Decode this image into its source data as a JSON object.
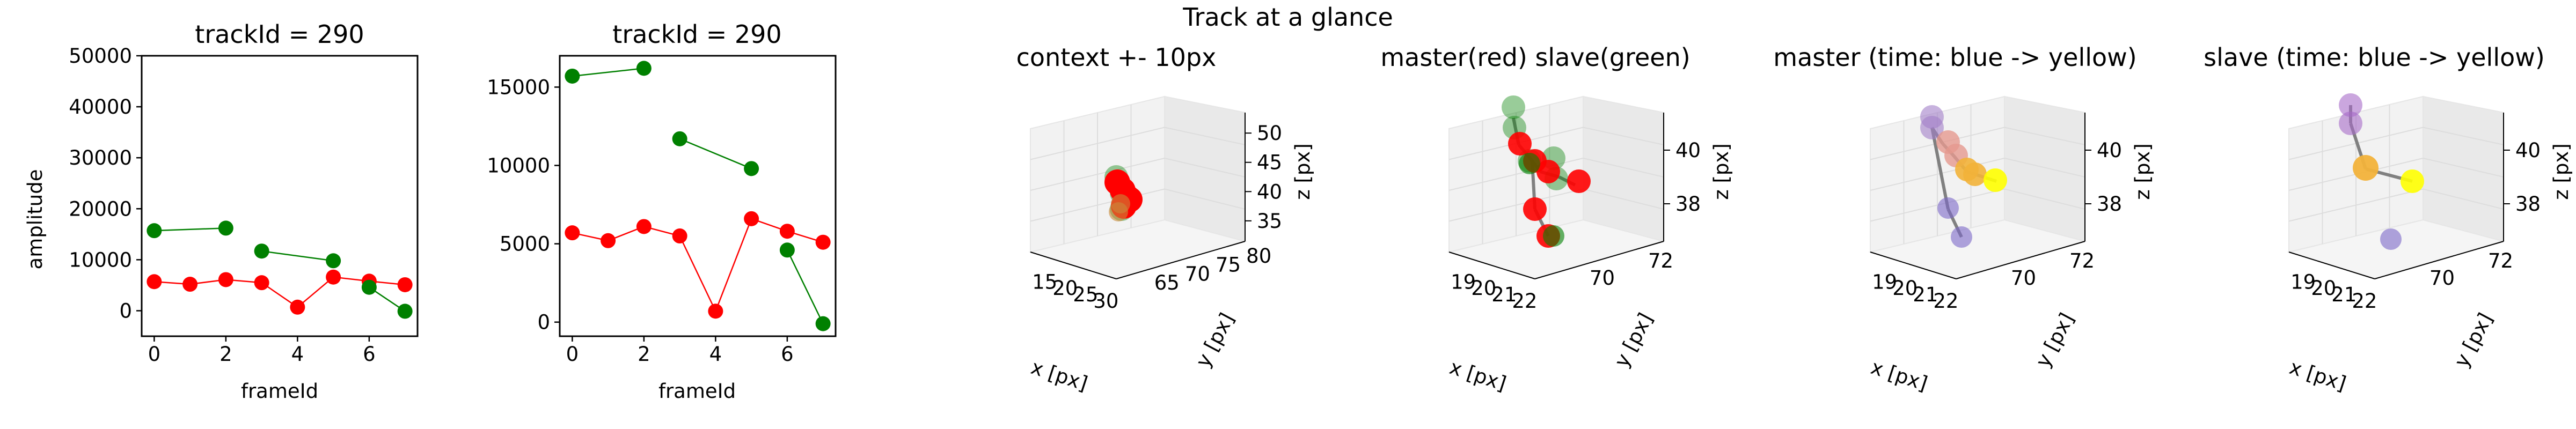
{
  "suptitle": "Track at a glance",
  "colors": {
    "master": "#ff0000",
    "slave": "#008000",
    "trajectory": "#808080",
    "time_start": "#7b68c8",
    "time_end": "#ffff00"
  },
  "chart_data": [
    {
      "type": "line",
      "title": "trackId = 290",
      "xlabel": "frameId",
      "ylabel": "amplitude",
      "xticks": [
        0,
        2,
        4,
        6
      ],
      "yticks": [
        0,
        10000,
        20000,
        30000,
        40000,
        50000
      ],
      "xlim": [
        -0.35,
        7.35
      ],
      "ylim": [
        -5000,
        50000
      ],
      "series": [
        {
          "color": "#ff0000",
          "x": [
            0,
            1,
            2,
            3,
            4,
            5,
            6,
            7
          ],
          "y": [
            5700,
            5200,
            6100,
            5500,
            700,
            6600,
            5800,
            5100
          ]
        },
        {
          "color": "#008000",
          "x": [
            0,
            2,
            3,
            5,
            6,
            7
          ],
          "y": [
            15700,
            16200,
            11700,
            9800,
            4600,
            -100
          ],
          "breaks": [
            1,
            3
          ]
        }
      ]
    },
    {
      "type": "line",
      "title": "trackId = 290",
      "xlabel": "frameId",
      "ylabel": "",
      "xticks": [
        0,
        2,
        4,
        6
      ],
      "yticks": [
        0,
        5000,
        10000,
        15000
      ],
      "xlim": [
        -0.35,
        7.35
      ],
      "ylim": [
        -900,
        17000
      ],
      "series": [
        {
          "color": "#ff0000",
          "x": [
            0,
            1,
            2,
            3,
            4,
            5,
            6,
            7
          ],
          "y": [
            5700,
            5200,
            6100,
            5500,
            700,
            6600,
            5800,
            5100
          ]
        },
        {
          "color": "#008000",
          "x": [
            0,
            2,
            3,
            5,
            6,
            7
          ],
          "y": [
            15700,
            16200,
            11700,
            9800,
            4600,
            -100
          ],
          "breaks": [
            1,
            3
          ]
        }
      ]
    },
    {
      "type": "scatter",
      "title": "context +- 10px",
      "xlabel": "x [px]",
      "ylabel": "y [px]",
      "zlabel": "z [px]",
      "xticks": [
        "15",
        "20",
        "25",
        "30"
      ],
      "yticks": [
        "65",
        "70",
        "75",
        "80"
      ],
      "zticks": [
        "35",
        "40",
        "45",
        "50"
      ]
    },
    {
      "type": "scatter",
      "title": "master(red) slave(green)",
      "xlabel": "x [px]",
      "ylabel": "y [px]",
      "zlabel": "z [px]",
      "xticks": [
        "19",
        "20",
        "21",
        "22"
      ],
      "yticks": [
        "70",
        "72"
      ],
      "zticks": [
        "38",
        "40"
      ]
    },
    {
      "type": "scatter",
      "title": "master (time: blue -> yellow)",
      "xlabel": "x [px]",
      "ylabel": "y [px]",
      "zlabel": "z [px]",
      "xticks": [
        "19",
        "20",
        "21",
        "22"
      ],
      "yticks": [
        "70",
        "72"
      ],
      "zticks": [
        "38",
        "40"
      ]
    },
    {
      "type": "scatter",
      "title": "slave (time: blue -> yellow)",
      "xlabel": "x [px]",
      "ylabel": "y [px]",
      "zlabel": "z [px]",
      "xticks": [
        "19",
        "20",
        "21",
        "22"
      ],
      "yticks": [
        "70",
        "72"
      ],
      "zticks": [
        "38",
        "40"
      ]
    }
  ]
}
